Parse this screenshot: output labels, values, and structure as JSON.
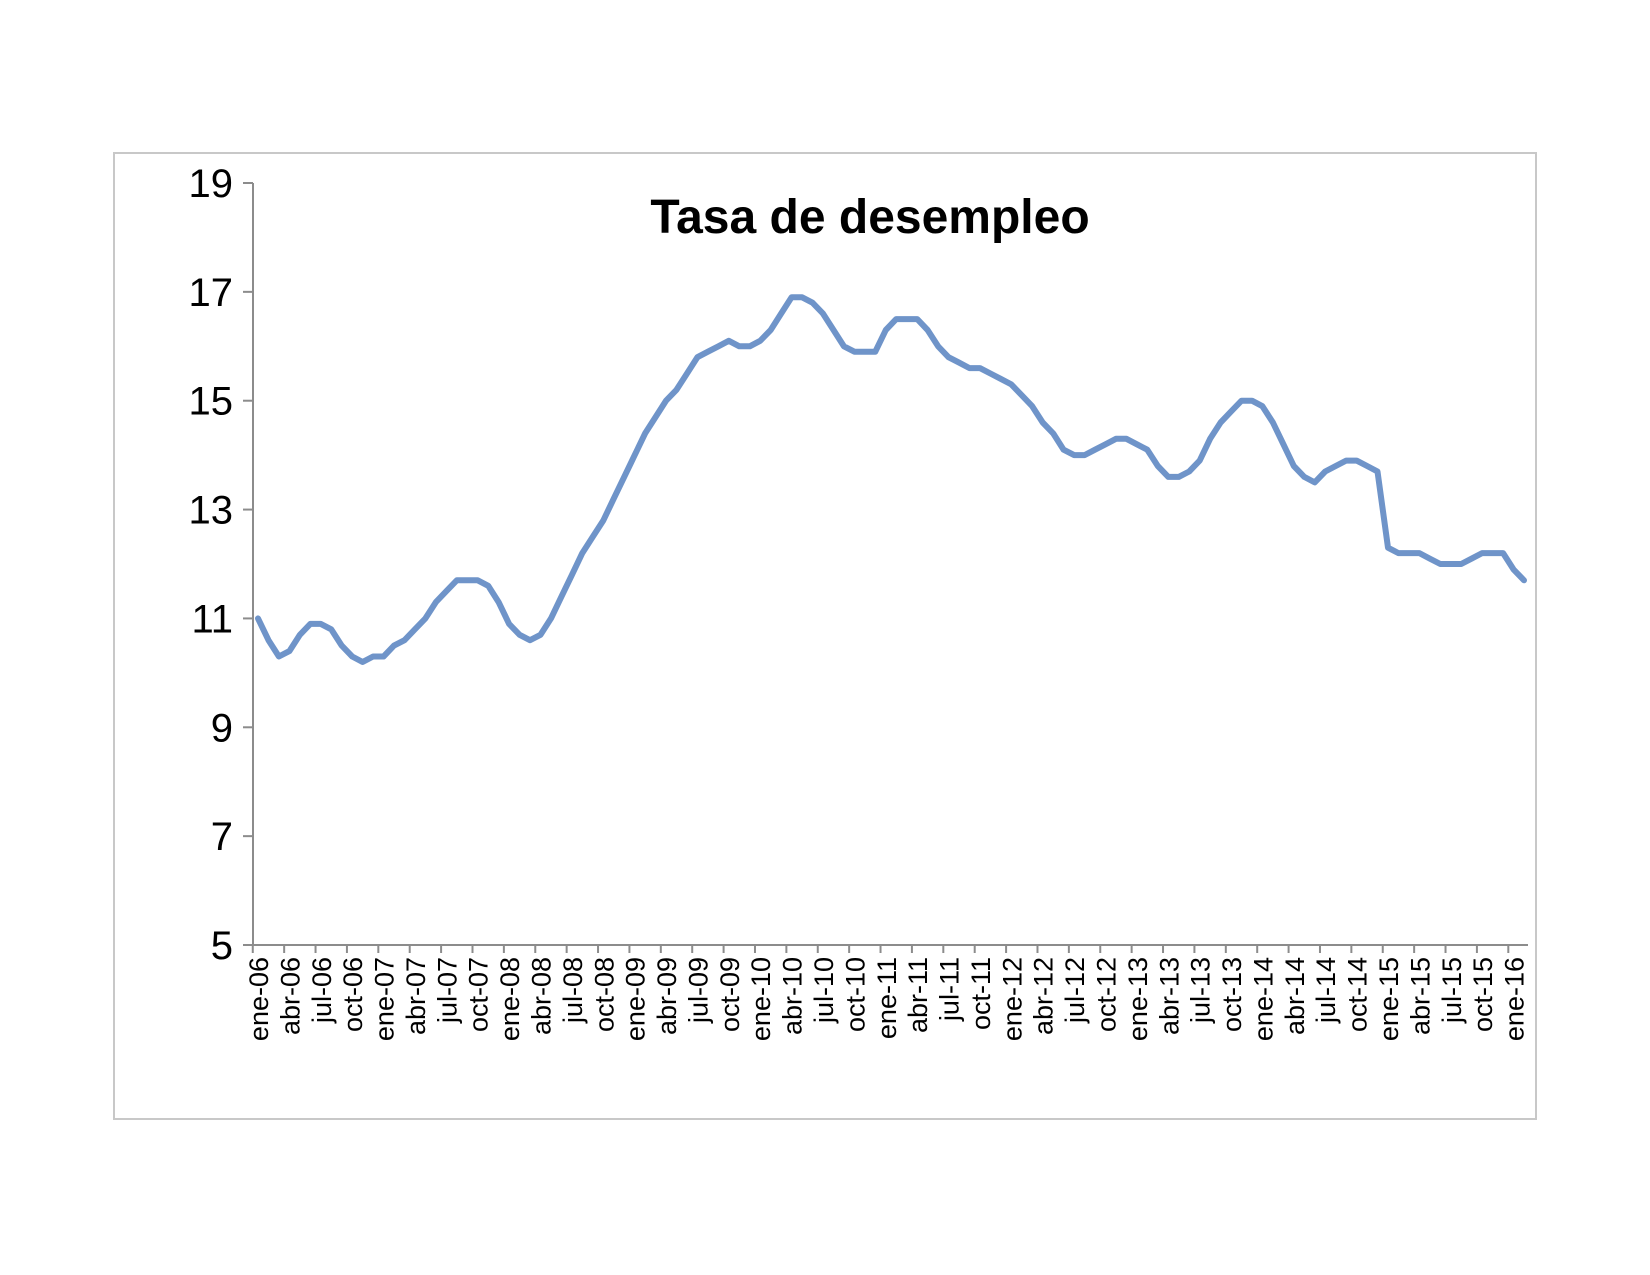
{
  "chart_data": {
    "type": "line",
    "title": "Tasa de desempleo",
    "xlabel": "",
    "ylabel": "",
    "ylim": [
      5,
      19
    ],
    "yticks": [
      5,
      7,
      9,
      11,
      13,
      15,
      17,
      19
    ],
    "grid": false,
    "legend": "none",
    "line_color": "#6f94c9",
    "x_tick_labels": [
      "ene-06",
      "abr-06",
      "jul-06",
      "oct-06",
      "ene-07",
      "abr-07",
      "jul-07",
      "oct-07",
      "ene-08",
      "abr-08",
      "jul-08",
      "oct-08",
      "ene-09",
      "abr-09",
      "jul-09",
      "oct-09",
      "ene-10",
      "abr-10",
      "jul-10",
      "oct-10",
      "ene-11",
      "abr-11",
      "jul-11",
      "oct-11",
      "ene-12",
      "abr-12",
      "jul-12",
      "oct-12",
      "ene-13",
      "abr-13",
      "jul-13",
      "oct-13",
      "ene-14",
      "abr-14",
      "jul-14",
      "oct-14",
      "ene-15",
      "abr-15",
      "jul-15",
      "oct-15",
      "ene-16"
    ],
    "series": [
      {
        "values": [
          11.0,
          10.6,
          10.3,
          10.4,
          10.7,
          10.9,
          10.9,
          10.8,
          10.5,
          10.3,
          10.2,
          10.3,
          10.3,
          10.5,
          10.6,
          10.8,
          11.0,
          11.3,
          11.5,
          11.7,
          11.7,
          11.7,
          11.6,
          11.3,
          10.9,
          10.7,
          10.6,
          10.7,
          11.0,
          11.4,
          11.8,
          12.2,
          12.5,
          12.8,
          13.2,
          13.6,
          14.0,
          14.4,
          14.7,
          15.0,
          15.2,
          15.5,
          15.8,
          15.9,
          16.0,
          16.1,
          16.0,
          16.0,
          16.1,
          16.3,
          16.6,
          16.9,
          16.9,
          16.8,
          16.6,
          16.3,
          16.0,
          15.9,
          15.9,
          15.9,
          16.3,
          16.5,
          16.5,
          16.5,
          16.3,
          16.0,
          15.8,
          15.7,
          15.6,
          15.6,
          15.5,
          15.4,
          15.3,
          15.1,
          14.9,
          14.6,
          14.4,
          14.1,
          14.0,
          14.0,
          14.1,
          14.2,
          14.3,
          14.3,
          14.2,
          14.1,
          13.8,
          13.6,
          13.6,
          13.7,
          13.9,
          14.3,
          14.6,
          14.8,
          15.0,
          15.0,
          14.9,
          14.6,
          14.2,
          13.8,
          13.6,
          13.5,
          13.7,
          13.8,
          13.9,
          13.9,
          13.8,
          13.7,
          12.3,
          12.2,
          12.2,
          12.2,
          12.1,
          12.0,
          12.0,
          12.0,
          12.1,
          12.2,
          12.2,
          12.2,
          11.9,
          11.7
        ]
      }
    ]
  }
}
